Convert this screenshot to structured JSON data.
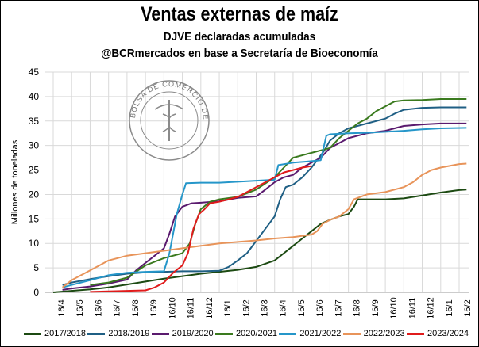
{
  "header": {
    "title": "Ventas externas de maíz",
    "subtitle": "DJVE declaradas acumuladas",
    "subtitle2": "@BCRmercados en base a Secretaría de Bioeconomía"
  },
  "watermark": {
    "text": "BOLSA DE COMERCIO DE ROSARIO"
  },
  "chart_data": {
    "type": "line",
    "ylabel": "Millones de toneladas",
    "ylim": [
      0,
      45
    ],
    "yticks": [
      0,
      5,
      10,
      15,
      20,
      25,
      30,
      35,
      40,
      45
    ],
    "xticks": [
      "16/4",
      "16/5",
      "16/6",
      "16/7",
      "16/8",
      "16/9",
      "16/10",
      "16/11",
      "16/12",
      "16/1",
      "16/2",
      "16/3",
      "16/4",
      "16/5",
      "16/6",
      "16/7",
      "16/8",
      "16/9",
      "16/10",
      "16/11",
      "16/12",
      "16/1",
      "16/2"
    ],
    "x_unit": "month index from 16/4",
    "grid": true,
    "legend_position": "bottom",
    "series": [
      {
        "name": "2017/2018",
        "color": "#1c4a12",
        "points": [
          [
            0,
            0
          ],
          [
            1,
            0.3
          ],
          [
            2,
            0.6
          ],
          [
            3,
            1.0
          ],
          [
            4,
            1.6
          ],
          [
            5,
            2.2
          ],
          [
            6,
            2.8
          ],
          [
            7,
            3.3
          ],
          [
            8,
            3.8
          ],
          [
            9,
            4.2
          ],
          [
            10,
            4.6
          ],
          [
            11,
            5.2
          ],
          [
            12,
            6.5
          ],
          [
            12.5,
            8.0
          ],
          [
            13,
            9.5
          ],
          [
            13.5,
            11.0
          ],
          [
            14,
            12.5
          ],
          [
            14.5,
            14.0
          ],
          [
            15,
            14.8
          ],
          [
            15.5,
            15.5
          ],
          [
            16,
            16.0
          ],
          [
            16.3,
            17.5
          ],
          [
            16.5,
            19.0
          ],
          [
            17,
            19.0
          ],
          [
            18,
            19.0
          ],
          [
            19,
            19.2
          ],
          [
            20,
            19.8
          ],
          [
            21,
            20.4
          ],
          [
            22,
            20.9
          ],
          [
            22.4,
            21.0
          ]
        ]
      },
      {
        "name": "2018/2019",
        "color": "#1f5f84",
        "points": [
          [
            0.5,
            1.5
          ],
          [
            1,
            2.0
          ],
          [
            2,
            2.7
          ],
          [
            3,
            3.3
          ],
          [
            4,
            3.8
          ],
          [
            5,
            4.1
          ],
          [
            6,
            4.2
          ],
          [
            7,
            4.3
          ],
          [
            8,
            4.3
          ],
          [
            9,
            4.4
          ],
          [
            9.5,
            5.2
          ],
          [
            10,
            6.5
          ],
          [
            10.5,
            8.0
          ],
          [
            11,
            10.5
          ],
          [
            11.5,
            13.0
          ],
          [
            12,
            15.5
          ],
          [
            12.3,
            19.0
          ],
          [
            12.6,
            21.5
          ],
          [
            13,
            22.0
          ],
          [
            13.5,
            23.5
          ],
          [
            14,
            25.5
          ],
          [
            14.3,
            27.0
          ],
          [
            14.7,
            29.0
          ],
          [
            15,
            31.0
          ],
          [
            15.5,
            32.5
          ],
          [
            16,
            33.5
          ],
          [
            17,
            34.5
          ],
          [
            18,
            35.5
          ],
          [
            18.5,
            36.5
          ],
          [
            19,
            37.3
          ],
          [
            20,
            37.7
          ],
          [
            21,
            37.8
          ],
          [
            22.4,
            37.8
          ]
        ]
      },
      {
        "name": "2019/2020",
        "color": "#5a1a6e",
        "points": [
          [
            0.5,
            0.5
          ],
          [
            1,
            0.8
          ],
          [
            2,
            1.2
          ],
          [
            3,
            1.8
          ],
          [
            4,
            2.6
          ],
          [
            4.5,
            4.5
          ],
          [
            5,
            6.0
          ],
          [
            5.5,
            7.5
          ],
          [
            6,
            9.0
          ],
          [
            6.3,
            12.0
          ],
          [
            6.6,
            15.5
          ],
          [
            7,
            17.5
          ],
          [
            7.5,
            18.2
          ],
          [
            8,
            18.3
          ],
          [
            9,
            18.6
          ],
          [
            10,
            19.3
          ],
          [
            11,
            19.6
          ],
          [
            11.5,
            21.0
          ],
          [
            12,
            22.5
          ],
          [
            12.5,
            23.5
          ],
          [
            13,
            24.0
          ],
          [
            13.5,
            25.5
          ],
          [
            14,
            26.5
          ],
          [
            14.5,
            27.5
          ],
          [
            15,
            29.5
          ],
          [
            15.5,
            30.5
          ],
          [
            16,
            31.5
          ],
          [
            17,
            32.5
          ],
          [
            18,
            33.0
          ],
          [
            18.5,
            33.5
          ],
          [
            19,
            34.0
          ],
          [
            20,
            34.3
          ],
          [
            21,
            34.5
          ],
          [
            22.4,
            34.5
          ]
        ]
      },
      {
        "name": "2020/2021",
        "color": "#3a7a1e",
        "points": [
          [
            2,
            1.5
          ],
          [
            3,
            2.0
          ],
          [
            4,
            3.0
          ],
          [
            5,
            5.5
          ],
          [
            6,
            7.0
          ],
          [
            7,
            8.0
          ],
          [
            7.4,
            10.0
          ],
          [
            7.7,
            14.0
          ],
          [
            8,
            17.0
          ],
          [
            8.5,
            18.5
          ],
          [
            9,
            19.0
          ],
          [
            10,
            19.5
          ],
          [
            11,
            21.0
          ],
          [
            12,
            23.5
          ],
          [
            12.5,
            25.5
          ],
          [
            13,
            27.5
          ],
          [
            14,
            28.5
          ],
          [
            14.5,
            29.0
          ],
          [
            15,
            29.5
          ],
          [
            15.5,
            31.5
          ],
          [
            16,
            33.0
          ],
          [
            16.5,
            34.5
          ],
          [
            17,
            35.5
          ],
          [
            17.5,
            37.0
          ],
          [
            18,
            38.0
          ],
          [
            18.5,
            39.0
          ],
          [
            19,
            39.2
          ],
          [
            20,
            39.3
          ],
          [
            21,
            39.5
          ],
          [
            22.4,
            39.5
          ]
        ]
      },
      {
        "name": "2021/2022",
        "color": "#2596c9",
        "points": [
          [
            0.5,
            1.0
          ],
          [
            1,
            1.5
          ],
          [
            2,
            2.5
          ],
          [
            3,
            3.5
          ],
          [
            4,
            4.0
          ],
          [
            5,
            4.2
          ],
          [
            6,
            4.3
          ],
          [
            6.3,
            8.0
          ],
          [
            6.7,
            16.0
          ],
          [
            7,
            20.0
          ],
          [
            7.2,
            22.3
          ],
          [
            8,
            22.4
          ],
          [
            9,
            22.4
          ],
          [
            10,
            22.6
          ],
          [
            11,
            22.8
          ],
          [
            12,
            23.0
          ],
          [
            12.2,
            26.0
          ],
          [
            13,
            26.5
          ],
          [
            14,
            26.8
          ],
          [
            14.5,
            27.0
          ],
          [
            14.8,
            32.0
          ],
          [
            15,
            32.3
          ],
          [
            16,
            32.5
          ],
          [
            17,
            32.6
          ],
          [
            18,
            32.8
          ],
          [
            19,
            33.0
          ],
          [
            20,
            33.3
          ],
          [
            21,
            33.5
          ],
          [
            22.4,
            33.6
          ]
        ]
      },
      {
        "name": "2022/2023",
        "color": "#e8945a",
        "points": [
          [
            0.5,
            1.0
          ],
          [
            1,
            2.5
          ],
          [
            2,
            4.5
          ],
          [
            3,
            6.5
          ],
          [
            4,
            7.5
          ],
          [
            5,
            8.0
          ],
          [
            6,
            8.5
          ],
          [
            7,
            9.0
          ],
          [
            8,
            9.5
          ],
          [
            9,
            10.0
          ],
          [
            10,
            10.3
          ],
          [
            11,
            10.6
          ],
          [
            12,
            11.0
          ],
          [
            13,
            11.3
          ],
          [
            14,
            11.8
          ],
          [
            14.3,
            12.5
          ],
          [
            14.6,
            14.0
          ],
          [
            15,
            14.8
          ],
          [
            15.5,
            15.5
          ],
          [
            16,
            17.0
          ],
          [
            16.3,
            19.0
          ],
          [
            17,
            20.0
          ],
          [
            18,
            20.5
          ],
          [
            19,
            21.5
          ],
          [
            19.5,
            22.5
          ],
          [
            20,
            24.0
          ],
          [
            20.5,
            25.0
          ],
          [
            21,
            25.5
          ],
          [
            22,
            26.2
          ],
          [
            22.4,
            26.3
          ]
        ]
      },
      {
        "name": "2023/2024",
        "color": "#e01b1b",
        "points": [
          [
            2,
            0.1
          ],
          [
            3,
            0.2
          ],
          [
            4,
            0.3
          ],
          [
            5,
            0.4
          ],
          [
            5.5,
            1.0
          ],
          [
            6,
            2.0
          ],
          [
            6.5,
            4.0
          ],
          [
            7,
            5.5
          ],
          [
            7.3,
            8.0
          ],
          [
            7.6,
            13.0
          ],
          [
            7.9,
            16.0
          ],
          [
            8.2,
            17.0
          ],
          [
            8.5,
            18.2
          ],
          [
            9,
            18.5
          ],
          [
            9.5,
            19.0
          ],
          [
            10,
            19.5
          ],
          [
            10.5,
            20.5
          ],
          [
            11,
            21.5
          ],
          [
            11.5,
            22.5
          ],
          [
            12,
            23.5
          ],
          [
            12.5,
            24.5
          ],
          [
            13,
            25.0
          ],
          [
            13.5,
            25.5
          ],
          [
            14,
            25.8
          ]
        ]
      }
    ]
  }
}
